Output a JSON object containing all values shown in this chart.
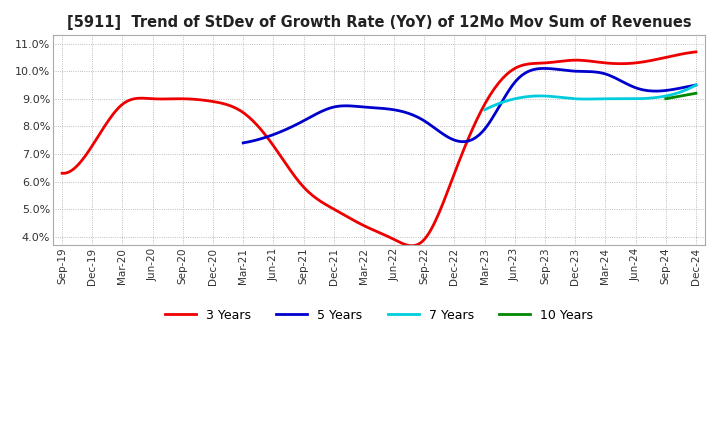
{
  "title": "[5911]  Trend of StDev of Growth Rate (YoY) of 12Mo Mov Sum of Revenues",
  "ylim": [
    0.037,
    0.113
  ],
  "yticks": [
    0.04,
    0.05,
    0.06,
    0.07,
    0.08,
    0.09,
    0.1,
    0.11
  ],
  "ytick_labels": [
    "4.0%",
    "5.0%",
    "6.0%",
    "7.0%",
    "8.0%",
    "9.0%",
    "10.0%",
    "11.0%"
  ],
  "background_color": "#ffffff",
  "plot_bg_color": "#ffffff",
  "grid_color": "#aaaaaa",
  "series": {
    "3 Years": {
      "color": "#ee0000"
    },
    "5 Years": {
      "color": "#0000cc"
    },
    "7 Years": {
      "color": "#00ccdd"
    },
    "10 Years": {
      "color": "#008800"
    }
  },
  "x_labels": [
    "Sep-19",
    "Dec-19",
    "Mar-20",
    "Jun-20",
    "Sep-20",
    "Dec-20",
    "Mar-21",
    "Jun-21",
    "Sep-21",
    "Dec-21",
    "Mar-22",
    "Jun-22",
    "Sep-22",
    "Dec-22",
    "Mar-23",
    "Jun-23",
    "Sep-23",
    "Dec-23",
    "Mar-24",
    "Jun-24",
    "Sep-24",
    "Dec-24"
  ],
  "y_3yr": [
    0.063,
    0.073,
    0.088,
    0.09,
    0.09,
    0.089,
    0.085,
    0.073,
    0.058,
    0.05,
    0.044,
    0.039,
    0.039,
    0.063,
    0.088,
    0.101,
    0.103,
    0.104,
    0.103,
    0.103,
    0.105,
    0.107
  ],
  "y_5yr": [
    null,
    null,
    null,
    null,
    null,
    null,
    0.074,
    0.077,
    0.082,
    0.087,
    0.087,
    0.086,
    0.082,
    0.075,
    0.079,
    0.096,
    0.101,
    0.1,
    0.099,
    0.094,
    0.093,
    0.095
  ],
  "y_7yr": [
    null,
    null,
    null,
    null,
    null,
    null,
    null,
    null,
    null,
    null,
    null,
    null,
    null,
    null,
    0.086,
    0.09,
    0.091,
    0.09,
    0.09,
    0.09,
    0.091,
    0.095
  ],
  "y_10yr": [
    null,
    null,
    null,
    null,
    null,
    null,
    null,
    null,
    null,
    null,
    null,
    null,
    null,
    null,
    null,
    null,
    null,
    null,
    null,
    null,
    0.09,
    0.092
  ]
}
